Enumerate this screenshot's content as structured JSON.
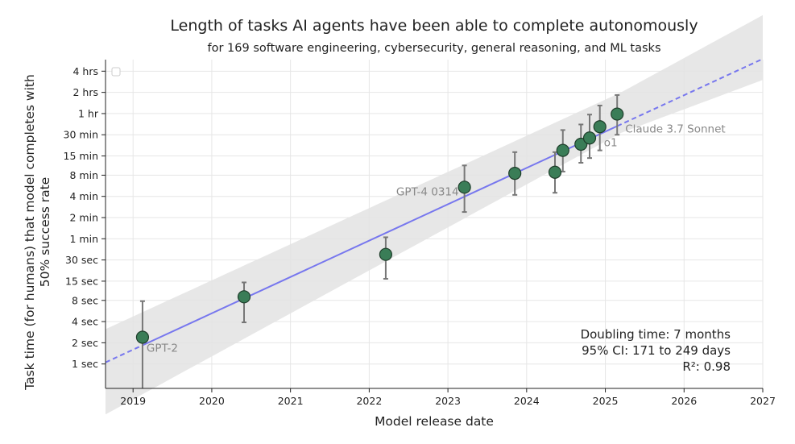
{
  "chart_data": {
    "type": "scatter",
    "title": "Length of tasks AI agents have been able to complete autonomously",
    "subtitle": "for 169 software engineering, cybersecurity, general reasoning, and ML tasks",
    "xlabel": "Model release date",
    "ylabel": "Task time (for humans) that model completes with 50% success rate",
    "ylabel_lines": [
      "Task time (for humans) that model completes with",
      "50% success rate"
    ],
    "xlim": [
      2018.65,
      2027.0
    ],
    "x_ticks": [
      2019,
      2020,
      2021,
      2022,
      2023,
      2024,
      2025,
      2026,
      2027
    ],
    "x_tick_labels": [
      "2019",
      "2020",
      "2021",
      "2022",
      "2023",
      "2024",
      "2025",
      "2026",
      "2027"
    ],
    "y_scale": "log2",
    "y_unit": "minutes",
    "ylim_minutes": [
      0.0075,
      350
    ],
    "y_ticks_minutes": [
      0.016667,
      0.033333,
      0.066667,
      0.133333,
      0.25,
      0.5,
      1,
      2,
      4,
      8,
      15,
      30,
      60,
      120,
      240
    ],
    "y_tick_labels": [
      "1 sec",
      "2 sec",
      "4 sec",
      "8 sec",
      "15 sec",
      "30 sec",
      "1 min",
      "2 min",
      "4 min",
      "8 min",
      "15 min",
      "30 min",
      "1 hr",
      "2 hrs",
      "4 hrs"
    ],
    "grid": true,
    "legend": "top-left",
    "points": [
      {
        "x": 2019.12,
        "y": 0.04,
        "low": 0.004,
        "high": 0.13,
        "label": "GPT-2"
      },
      {
        "x": 2020.41,
        "y": 0.15,
        "low": 0.065,
        "high": 0.24,
        "label": ""
      },
      {
        "x": 2022.21,
        "y": 0.6,
        "low": 0.27,
        "high": 1.05,
        "label": ""
      },
      {
        "x": 2023.21,
        "y": 5.4,
        "low": 2.4,
        "high": 11.0,
        "label": "GPT-4 0314"
      },
      {
        "x": 2023.85,
        "y": 8.5,
        "low": 4.2,
        "high": 17.0,
        "label": ""
      },
      {
        "x": 2024.36,
        "y": 8.8,
        "low": 4.5,
        "high": 17.0,
        "label": ""
      },
      {
        "x": 2024.46,
        "y": 18.0,
        "low": 9.0,
        "high": 35.0,
        "label": ""
      },
      {
        "x": 2024.69,
        "y": 22.0,
        "low": 12.0,
        "high": 42.0,
        "label": ""
      },
      {
        "x": 2024.8,
        "y": 27.0,
        "low": 14.0,
        "high": 58.0,
        "label": ""
      },
      {
        "x": 2024.93,
        "y": 39.0,
        "low": 18.0,
        "high": 78.0,
        "label": "o1"
      },
      {
        "x": 2025.15,
        "y": 59.0,
        "low": 30.0,
        "high": 110.0,
        "label": "Claude 3.7 Sonnet"
      }
    ],
    "trend": {
      "type": "exponential",
      "solid_range": [
        2019.12,
        2025.15
      ],
      "dashed_range": [
        2018.65,
        2027.0
      ],
      "ci_lower": [
        [
          2018.65,
          0.0032
        ],
        [
          2025.2,
          32
        ],
        [
          2027.0,
          180
        ]
      ],
      "ci_upper": [
        [
          2018.65,
          0.052
        ],
        [
          2025.2,
          120
        ],
        [
          2027.0,
          1500
        ]
      ]
    },
    "annotations": {
      "doubling_time": "Doubling time: 7 months",
      "ci": "95% CI: 171 to 249 days",
      "r2": "R²: 0.98"
    },
    "colors": {
      "point_fill": "#3a7d57",
      "point_stroke": "#1e3d2a",
      "error_bar": "#777777",
      "trend_line": "#7777ee",
      "ci_band": "#e3e3e3",
      "grid": "#e6e6e6"
    }
  }
}
